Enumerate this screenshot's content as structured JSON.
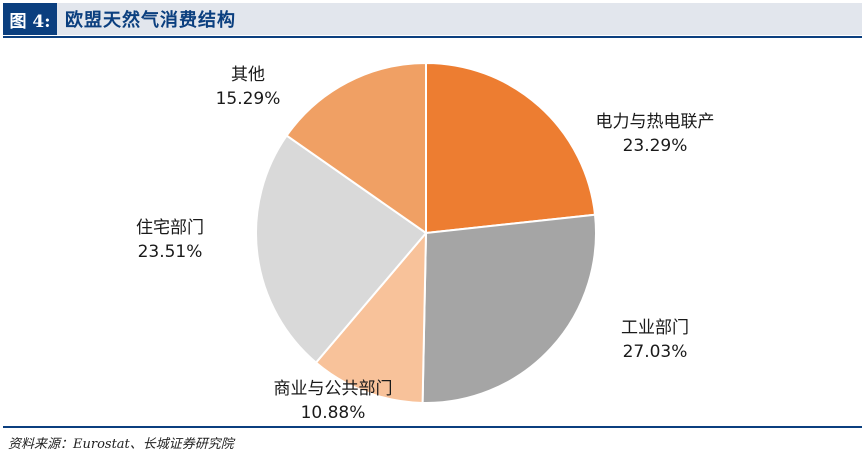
{
  "header": {
    "figure_number": "图 4:",
    "title": "欧盟天然气消费结构"
  },
  "chart_data": {
    "type": "pie",
    "start_angle_deg": 0,
    "direction": "clockwise",
    "slices": [
      {
        "name": "电力与热电联产",
        "value": 23.29,
        "label": "23.29%",
        "color": "#ED7D31"
      },
      {
        "name": "工业部门",
        "value": 27.03,
        "label": "27.03%",
        "color": "#A5A5A5"
      },
      {
        "name": "商业与公共部门",
        "value": 10.88,
        "label": "10.88%",
        "color": "#F8C29A"
      },
      {
        "name": "住宅部门",
        "value": 23.51,
        "label": "23.51%",
        "color": "#D9D9D9"
      },
      {
        "name": "其他",
        "value": 15.29,
        "label": "15.29%",
        "color": "#F0A064"
      }
    ]
  },
  "footer": {
    "source": "资料来源：Eurostat、长城证券研究院"
  }
}
